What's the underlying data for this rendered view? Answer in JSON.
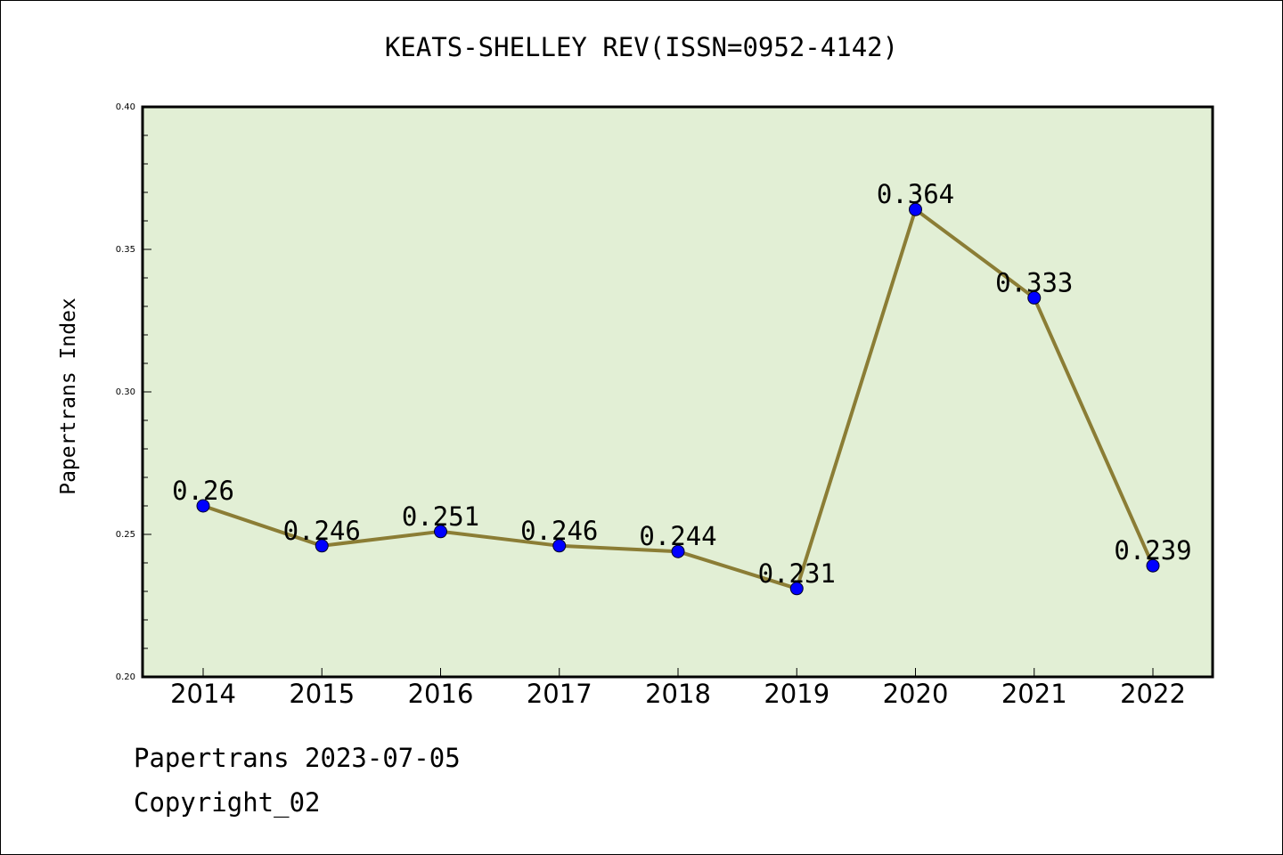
{
  "chart_data": {
    "type": "line",
    "title": "KEATS-SHELLEY REV(ISSN=0952-4142)",
    "xlabel": "",
    "ylabel": "Papertrans Index",
    "categories": [
      "2014",
      "2015",
      "2016",
      "2017",
      "2018",
      "2019",
      "2020",
      "2021",
      "2022"
    ],
    "values": [
      0.26,
      0.246,
      0.251,
      0.246,
      0.244,
      0.231,
      0.364,
      0.333,
      0.239
    ],
    "data_labels": [
      "0.26",
      "0.246",
      "0.251",
      "0.246",
      "0.244",
      "0.231",
      "0.364",
      "0.333",
      "0.239"
    ],
    "ylim": [
      0.2,
      0.4
    ],
    "yticks": [
      "0.20",
      "0.25",
      "0.30",
      "0.35",
      "0.40"
    ],
    "grid": false,
    "colors": {
      "plot_background": "#e2efd5",
      "line": "#8b7d35",
      "marker": "#0000ff"
    }
  },
  "footer": {
    "line1": "Papertrans 2023-07-05",
    "line2": "Copyright_02"
  }
}
